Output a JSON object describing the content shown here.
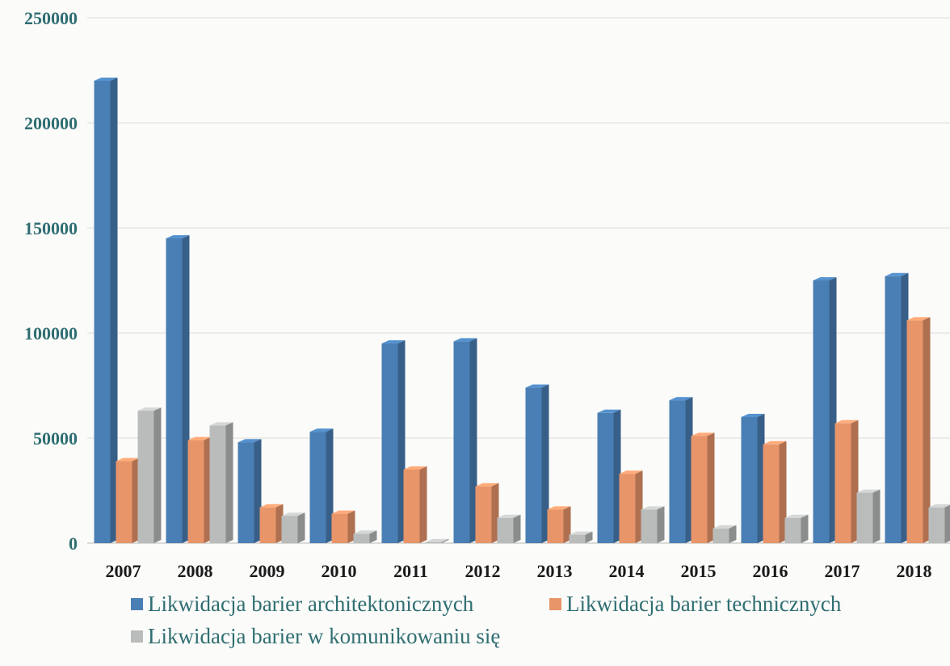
{
  "chart_data": {
    "type": "bar",
    "title": "",
    "xlabel": "",
    "ylabel": "",
    "categories": [
      "2007",
      "2008",
      "2009",
      "2010",
      "2011",
      "2012",
      "2013",
      "2014",
      "2015",
      "2016",
      "2017",
      "2018"
    ],
    "ylim": [
      0,
      250000
    ],
    "yticks": [
      "0",
      "50000",
      "100000",
      "150000",
      "200000",
      "250000"
    ],
    "grid": true,
    "legend_position": "bottom",
    "series": [
      {
        "name": "Likwidacja barier architektonicznych",
        "color": "#4a7fb5",
        "values": [
          220000,
          145000,
          48000,
          53000,
          95000,
          96000,
          74000,
          62000,
          68000,
          60000,
          125000,
          127000
        ]
      },
      {
        "name": "Likwidacja barier technicznych",
        "color": "#e8956a",
        "values": [
          39000,
          49000,
          17000,
          14000,
          35000,
          27000,
          16000,
          33000,
          51000,
          47000,
          57000,
          106000
        ]
      },
      {
        "name": "Likwidacja barier w komunikowaniu się",
        "color": "#b9bcbb",
        "values": [
          63000,
          56000,
          13000,
          4500,
          500,
          12000,
          4000,
          16000,
          7000,
          12000,
          24000,
          17000
        ]
      }
    ]
  }
}
